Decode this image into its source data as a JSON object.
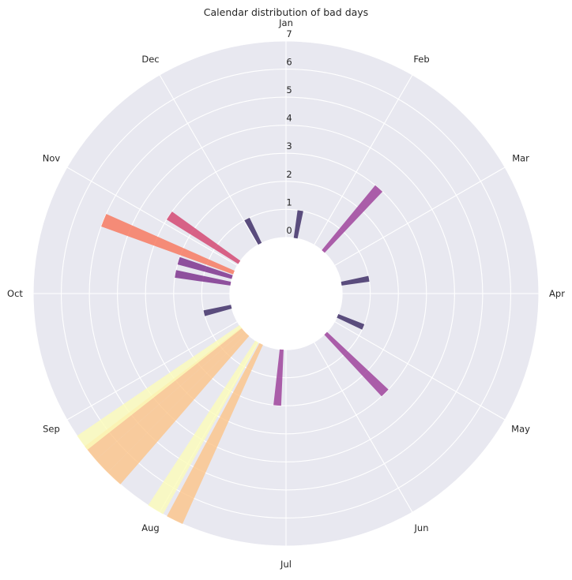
{
  "chart_data": {
    "type": "bar",
    "subtype": "polar",
    "title": "Calendar distribution of bad days",
    "theta_labels": [
      "Jan",
      "Feb",
      "Mar",
      "Apr",
      "May",
      "Jun",
      "Jul",
      "Aug",
      "Sep",
      "Oct",
      "Nov",
      "Dec"
    ],
    "r_ticks": [
      "0",
      "1",
      "2",
      "3",
      "4",
      "5",
      "6",
      "7"
    ],
    "rlim": [
      -2,
      7
    ],
    "theta_direction": "clockwise",
    "theta_zero": "top",
    "grid": true,
    "background": "#e8e8f0",
    "colormap": "magma",
    "bars": [
      {
        "day": 10,
        "value": 1,
        "color": "#3b2a63"
      },
      {
        "day": 42,
        "value": 3,
        "color": "#9c3e98"
      },
      {
        "day": 81,
        "value": 1,
        "color": "#3b2a63"
      },
      {
        "day": 115,
        "value": 1,
        "color": "#3b2a63"
      },
      {
        "day": 137,
        "value": 3,
        "color": "#9c3e98"
      },
      {
        "day": 187,
        "value": 2,
        "color": "#9c3e98"
      },
      {
        "day": 209,
        "value": 7,
        "color": "#fbc48a"
      },
      {
        "day": 214,
        "value": 7,
        "color": "#fbfbb9"
      },
      {
        "day": 226,
        "value": 7,
        "color": "#fbc48a"
      },
      {
        "day": 230,
        "value": 7,
        "color": "#fbc48a"
      },
      {
        "day": 234,
        "value": 7,
        "color": "#fbc48a"
      },
      {
        "day": 237,
        "value": 7,
        "color": "#fbfbb9"
      },
      {
        "day": 260,
        "value": 1,
        "color": "#3b2a63"
      },
      {
        "day": 284,
        "value": 2,
        "color": "#7a2d8a"
      },
      {
        "day": 291,
        "value": 2,
        "color": "#7a2d8a"
      },
      {
        "day": 296,
        "value": 5,
        "color": "#f8765c"
      },
      {
        "day": 308,
        "value": 3,
        "color": "#d3436e"
      },
      {
        "day": 337,
        "value": 1,
        "color": "#3b2a63"
      }
    ]
  }
}
